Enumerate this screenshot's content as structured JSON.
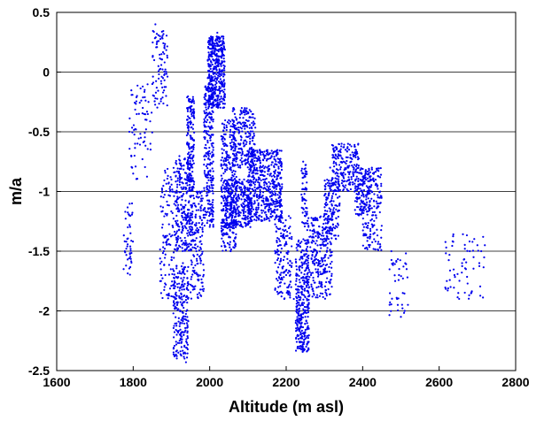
{
  "chart_data": {
    "type": "scatter",
    "title": "",
    "xlabel": "Altitude (m asl)",
    "ylabel": "m/a",
    "xlim": [
      1600,
      2800
    ],
    "ylim": [
      -2.5,
      0.5
    ],
    "xticks": [
      1600,
      1800,
      2000,
      2200,
      2400,
      2600,
      2800
    ],
    "yticks": [
      -2.5,
      -2,
      -1.5,
      -1,
      -0.5,
      0,
      0.5
    ],
    "xtick_labels": [
      "1600",
      "1800",
      "2000",
      "2200",
      "2400",
      "2600",
      "2800"
    ],
    "ytick_labels": [
      "-2.5",
      "-2",
      "-1.5",
      "-1",
      "-0.5",
      "0",
      "0.5"
    ],
    "horizontal_grid": true,
    "vertical_grid": false,
    "marker_color": "#0000ee",
    "series": [
      {
        "points": [
          [
            1775,
            -1.65
          ],
          [
            1778,
            -1.5
          ],
          [
            1782,
            -1.42
          ],
          [
            1786,
            -1.3
          ],
          [
            1790,
            -1.2
          ],
          [
            1793,
            -1.35
          ],
          [
            1797,
            -1.1
          ],
          [
            1790,
            -0.5
          ],
          [
            1795,
            -0.7
          ],
          [
            1800,
            -0.85
          ],
          [
            1805,
            -0.6
          ],
          [
            1810,
            -0.2
          ],
          [
            1815,
            -0.35
          ],
          [
            1820,
            -0.55
          ],
          [
            1825,
            -0.3
          ],
          [
            1830,
            -0.15
          ],
          [
            1835,
            -0.4
          ],
          [
            1840,
            -0.25
          ],
          [
            1845,
            -0.6
          ],
          [
            1850,
            -0.1
          ],
          [
            1855,
            0.1
          ],
          [
            1858,
            0.4
          ],
          [
            1862,
            0.25
          ],
          [
            1866,
            0.05
          ],
          [
            1870,
            0.3
          ],
          [
            1874,
            0.15
          ],
          [
            1878,
            -0.05
          ],
          [
            1882,
            0.2
          ],
          [
            1886,
            -0.2
          ],
          [
            1880,
            -1.5
          ],
          [
            1884,
            -1.7
          ],
          [
            1888,
            -1.2
          ],
          [
            1892,
            -1.4
          ],
          [
            1896,
            -1.0
          ],
          [
            1900,
            -0.9
          ],
          [
            1904,
            -1.3
          ],
          [
            1910,
            -1.9
          ],
          [
            1914,
            -2.2
          ],
          [
            1918,
            -2.35
          ],
          [
            1922,
            -2.0
          ],
          [
            1926,
            -1.8
          ],
          [
            1930,
            -1.6
          ],
          [
            1934,
            -2.3
          ],
          [
            1938,
            -2.43
          ],
          [
            1942,
            -1.2
          ],
          [
            1946,
            -0.6
          ],
          [
            1950,
            -0.3
          ],
          [
            1955,
            -0.8
          ],
          [
            1960,
            -1.1
          ],
          [
            1965,
            -1.5
          ],
          [
            1970,
            -1.7
          ],
          [
            1975,
            -1.3
          ],
          [
            1980,
            -1.0
          ],
          [
            1985,
            -0.5
          ],
          [
            1990,
            -0.2
          ],
          [
            1995,
            -0.05
          ],
          [
            2000,
            0.05
          ],
          [
            2005,
            -0.1
          ],
          [
            2010,
            0.1
          ],
          [
            2015,
            0.2
          ],
          [
            2020,
            0.33
          ],
          [
            2025,
            0.25
          ],
          [
            2030,
            0.05
          ],
          [
            2035,
            -0.3
          ],
          [
            2040,
            -0.6
          ],
          [
            2045,
            -1.1
          ],
          [
            2050,
            -1.3
          ],
          [
            2055,
            -1.5
          ],
          [
            2060,
            -1.2
          ],
          [
            2065,
            -0.7
          ],
          [
            2070,
            -0.4
          ],
          [
            2075,
            -0.6
          ],
          [
            2080,
            -0.8
          ],
          [
            2085,
            -1.0
          ],
          [
            2090,
            -0.9
          ],
          [
            2095,
            -0.7
          ],
          [
            2100,
            -0.5
          ],
          [
            2105,
            -0.6
          ],
          [
            2110,
            -0.75
          ],
          [
            2115,
            -0.9
          ],
          [
            2120,
            -1.0
          ],
          [
            2125,
            -0.85
          ],
          [
            2130,
            -0.95
          ],
          [
            2135,
            -1.05
          ],
          [
            2140,
            -0.9
          ],
          [
            2145,
            -0.7
          ],
          [
            2150,
            -0.8
          ],
          [
            2155,
            -1.0
          ],
          [
            2160,
            -1.1
          ],
          [
            2165,
            -0.9
          ],
          [
            2170,
            -1.0
          ],
          [
            2175,
            -1.2
          ],
          [
            2180,
            -1.5
          ],
          [
            2185,
            -1.7
          ],
          [
            2190,
            -1.85
          ],
          [
            2195,
            -1.9
          ],
          [
            2200,
            -1.7
          ],
          [
            2205,
            -1.5
          ],
          [
            2210,
            -1.35
          ],
          [
            2215,
            -1.6
          ],
          [
            2220,
            -1.9
          ],
          [
            2225,
            -2.1
          ],
          [
            2230,
            -2.3
          ],
          [
            2235,
            -2.0
          ],
          [
            2240,
            -1.8
          ],
          [
            2245,
            -1.4
          ],
          [
            2250,
            -0.85
          ],
          [
            2255,
            -1.5
          ],
          [
            2260,
            -1.8
          ],
          [
            2265,
            -1.7
          ],
          [
            2270,
            -1.6
          ],
          [
            2275,
            -1.55
          ],
          [
            2280,
            -1.5
          ],
          [
            2285,
            -1.6
          ],
          [
            2290,
            -1.45
          ],
          [
            2295,
            -1.3
          ],
          [
            2300,
            -1.2
          ],
          [
            2305,
            -1.05
          ],
          [
            2310,
            -0.95
          ],
          [
            2315,
            -0.8
          ],
          [
            2320,
            -0.9
          ],
          [
            2325,
            -0.75
          ],
          [
            2330,
            -0.7
          ],
          [
            2335,
            -0.85
          ],
          [
            2340,
            -0.7
          ],
          [
            2345,
            -0.6
          ],
          [
            2350,
            -0.75
          ],
          [
            2355,
            -0.65
          ],
          [
            2360,
            -0.8
          ],
          [
            2365,
            -0.9
          ],
          [
            2370,
            -0.75
          ],
          [
            2375,
            -0.85
          ],
          [
            2380,
            -0.7
          ],
          [
            2385,
            -1.05
          ],
          [
            2390,
            -1.2
          ],
          [
            2395,
            -1.15
          ],
          [
            2400,
            -0.95
          ],
          [
            2405,
            -1.1
          ],
          [
            2410,
            -1.3
          ],
          [
            2415,
            -1.0
          ],
          [
            2420,
            -0.9
          ],
          [
            2425,
            -1.2
          ],
          [
            2430,
            -1.4
          ],
          [
            2435,
            -1.2
          ],
          [
            2440,
            -1.05
          ],
          [
            2445,
            -1.1
          ],
          [
            2475,
            -1.5
          ],
          [
            2480,
            -1.6
          ],
          [
            2485,
            -1.75
          ],
          [
            2490,
            -1.9
          ],
          [
            2495,
            -1.7
          ],
          [
            2500,
            -2.05
          ],
          [
            2505,
            -1.85
          ],
          [
            2510,
            -2.0
          ],
          [
            2515,
            -1.65
          ],
          [
            2620,
            -1.75
          ],
          [
            2630,
            -1.8
          ],
          [
            2640,
            -1.7
          ],
          [
            2650,
            -1.85
          ],
          [
            2660,
            -1.6
          ],
          [
            2670,
            -1.65
          ],
          [
            2680,
            -1.5
          ],
          [
            2690,
            -1.55
          ],
          [
            2700,
            -1.45
          ],
          [
            2705,
            -1.6
          ],
          [
            2710,
            -1.5
          ],
          [
            2715,
            -1.38
          ]
        ],
        "clusters": [
          {
            "x": [
              1775,
              1800
            ],
            "y": [
              -1.7,
              -1.1
            ],
            "n": 40
          },
          {
            "x": [
              1790,
              1850
            ],
            "y": [
              -0.9,
              -0.1
            ],
            "n": 60
          },
          {
            "x": [
              1850,
              1890
            ],
            "y": [
              -0.3,
              0.35
            ],
            "n": 80
          },
          {
            "x": [
              1870,
              1910
            ],
            "y": [
              -1.9,
              -0.8
            ],
            "n": 120
          },
          {
            "x": [
              1905,
              1945
            ],
            "y": [
              -2.4,
              -1.6
            ],
            "n": 220
          },
          {
            "x": [
              1910,
              1950
            ],
            "y": [
              -1.5,
              -0.7
            ],
            "n": 250
          },
          {
            "x": [
              1940,
              1960
            ],
            "y": [
              -1.0,
              -0.2
            ],
            "n": 160
          },
          {
            "x": [
              1950,
              1985
            ],
            "y": [
              -1.9,
              -1.0
            ],
            "n": 180
          },
          {
            "x": [
              1985,
              2010
            ],
            "y": [
              -1.3,
              -0.1
            ],
            "n": 260
          },
          {
            "x": [
              1995,
              2040
            ],
            "y": [
              -0.3,
              0.3
            ],
            "n": 420
          },
          {
            "x": [
              2030,
              2070
            ],
            "y": [
              -1.5,
              -0.4
            ],
            "n": 320
          },
          {
            "x": [
              2040,
              2110
            ],
            "y": [
              -1.3,
              -0.9
            ],
            "n": 300
          },
          {
            "x": [
              2060,
              2120
            ],
            "y": [
              -0.8,
              -0.3
            ],
            "n": 200
          },
          {
            "x": [
              2100,
              2190
            ],
            "y": [
              -1.25,
              -0.65
            ],
            "n": 520
          },
          {
            "x": [
              2170,
              2215
            ],
            "y": [
              -1.9,
              -1.2
            ],
            "n": 140
          },
          {
            "x": [
              2225,
              2260
            ],
            "y": [
              -2.35,
              -1.4
            ],
            "n": 320
          },
          {
            "x": [
              2240,
              2255
            ],
            "y": [
              -1.3,
              -0.75
            ],
            "n": 60
          },
          {
            "x": [
              2255,
              2320
            ],
            "y": [
              -1.9,
              -1.2
            ],
            "n": 260
          },
          {
            "x": [
              2300,
              2340
            ],
            "y": [
              -1.4,
              -0.9
            ],
            "n": 140
          },
          {
            "x": [
              2320,
              2390
            ],
            "y": [
              -1.0,
              -0.6
            ],
            "n": 200
          },
          {
            "x": [
              2380,
              2420
            ],
            "y": [
              -1.2,
              -0.8
            ],
            "n": 120
          },
          {
            "x": [
              2400,
              2450
            ],
            "y": [
              -1.5,
              -0.8
            ],
            "n": 160
          },
          {
            "x": [
              2470,
              2520
            ],
            "y": [
              -2.05,
              -1.5
            ],
            "n": 35
          },
          {
            "x": [
              2615,
              2720
            ],
            "y": [
              -1.9,
              -1.35
            ],
            "n": 55
          }
        ]
      }
    ]
  }
}
